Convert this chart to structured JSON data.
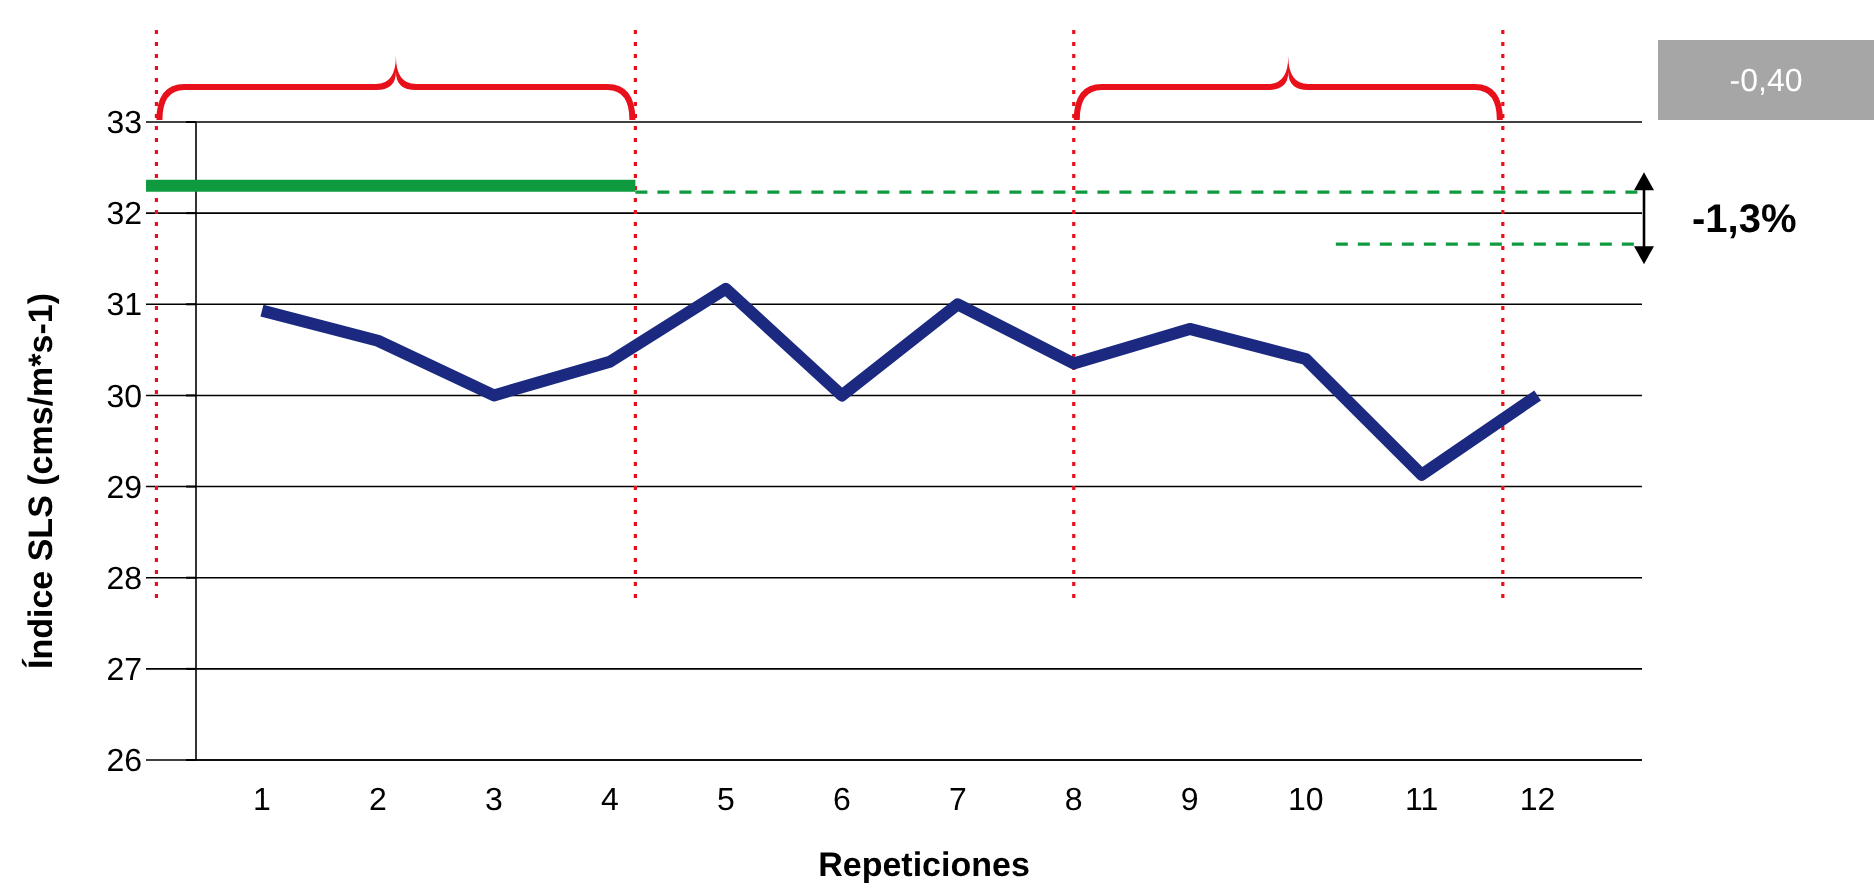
{
  "chart_data": {
    "type": "line",
    "xlabel": "Repeticiones",
    "ylabel": "Índice SLS (cms/m*s-1)",
    "xlim": [
      0,
      12.9
    ],
    "xticks": [
      1,
      2,
      3,
      4,
      5,
      6,
      7,
      8,
      9,
      10,
      11,
      12
    ],
    "ylim": [
      26,
      33
    ],
    "yticks": [
      26,
      27,
      28,
      29,
      30,
      31,
      32,
      33
    ],
    "grid": "y",
    "marker": "none",
    "series": [
      {
        "color": "#1b2a80",
        "line_style": "solid",
        "x": [
          1,
          2,
          3,
          4,
          5,
          6,
          7,
          8,
          9,
          10,
          11,
          12
        ],
        "values": [
          30.93,
          30.6,
          30.0,
          30.37,
          31.17,
          30.0,
          31.0,
          30.35,
          30.73,
          30.4,
          29.13,
          30.0
        ]
      },
      {
        "color": "#0e9a3e",
        "line_style": "solid",
        "x": [
          0,
          4.22
        ],
        "values": [
          32.3,
          32.3
        ]
      },
      {
        "color": "#0e9a3e",
        "line_style": "dashed",
        "x": [
          4.22,
          12.9
        ],
        "values": [
          32.23,
          32.23
        ]
      },
      {
        "color": "#0e9a3e",
        "line_style": "dashed",
        "x": [
          10.26,
          12.9
        ],
        "values": [
          31.66,
          31.66
        ]
      }
    ],
    "ref_lines": [
      {
        "axis": "x",
        "value": 0.09,
        "color": "#e8101a",
        "line_style": "dotted"
      },
      {
        "axis": "x",
        "value": 4.22,
        "color": "#e8101a",
        "line_style": "dotted"
      },
      {
        "axis": "x",
        "value": 8.0,
        "color": "#e8101a",
        "line_style": "dotted"
      },
      {
        "axis": "x",
        "value": 11.7,
        "color": "#e8101a",
        "line_style": "dotted"
      }
    ],
    "annotations": [
      "-1,3%",
      "-0,40"
    ]
  }
}
